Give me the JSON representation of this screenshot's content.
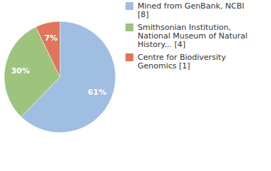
{
  "chart_data": {
    "type": "pie",
    "categories": [
      "Mined from GenBank, NCBI [8]",
      "Smithsonian Institution, National Museum of Natural History... [4]",
      "Centre for Biodiversity Genomics [1]"
    ],
    "values": [
      61,
      30,
      7
    ],
    "value_labels": [
      "61%",
      "30%",
      "7%"
    ],
    "colors": [
      "#a0bde2",
      "#9cc47c",
      "#e0755a"
    ],
    "data_labels": true,
    "legend": "upper right"
  }
}
